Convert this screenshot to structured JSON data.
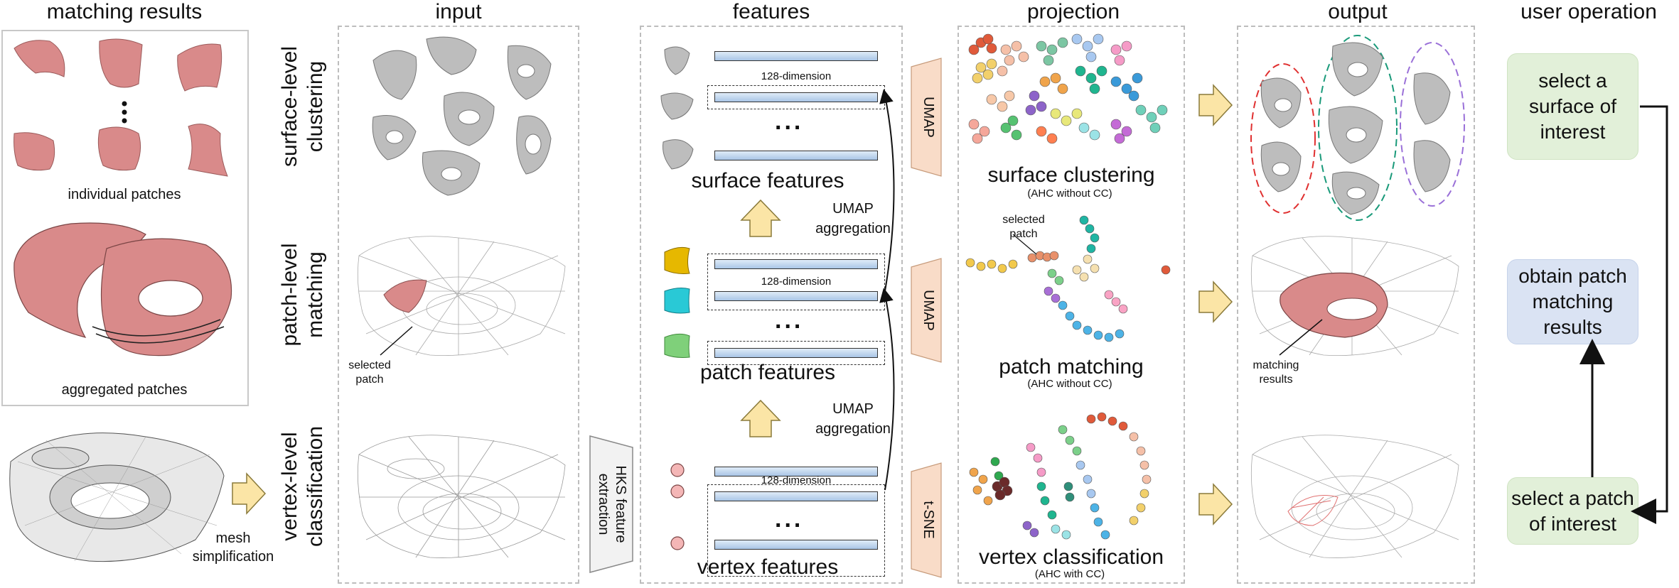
{
  "columns": {
    "matching_results": "matching results",
    "input": "input",
    "features": "features",
    "projection": "projection",
    "output": "output",
    "user_operation": "user operation"
  },
  "rows": {
    "surface": "surface-level\nclustering",
    "patch": "patch-level\nmatching",
    "vertex": "vertex-level\nclassification"
  },
  "matching": {
    "individual_patches": "individual patches",
    "aggregated_patches": "aggregated patches",
    "mesh_simplification": "mesh\nsimplification"
  },
  "input": {
    "selected_patch": "selected\npatch"
  },
  "features": {
    "dim_label": "128-dimension",
    "surface_features": "surface features",
    "patch_features": "patch features",
    "vertex_features": "vertex features",
    "umap_aggregation": "UMAP\naggregation",
    "hks": "HKS feature\nextraction",
    "umap": "UMAP",
    "tsne": "t-SNE",
    "ellipsis": "..."
  },
  "projection": {
    "surface_title": "surface clustering",
    "surface_sub": "(AHC without CC)",
    "patch_title": "patch matching",
    "patch_sub": "(AHC without CC)",
    "vertex_title": "vertex classification",
    "vertex_sub": "(AHC with CC)",
    "selected_patch": "selected\npatch"
  },
  "output": {
    "matching_results": "matching\nresults"
  },
  "user_operation": {
    "op1": "select a\nsurface of\ninterest",
    "op2": "obtain patch\nmatching\nresults",
    "op3": "select a patch\nof interest"
  },
  "colors": {
    "patch_pink": "#d98a8a",
    "arrow_yellow": "#fbe5a6",
    "arrow_border": "#8a7a3a",
    "trap_orange": "#f9dcc8",
    "op_green": "#e2f0d9",
    "op_blue": "#dae3f3"
  }
}
